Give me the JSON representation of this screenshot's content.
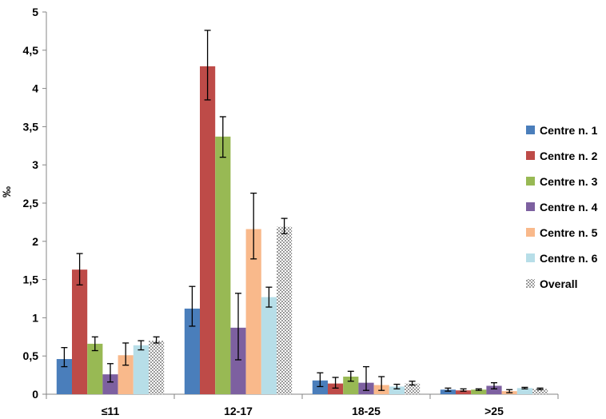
{
  "chart_data": {
    "type": "bar",
    "title": "",
    "xlabel": "",
    "ylabel": "‰",
    "ylim": [
      0,
      5
    ],
    "ytick_labels": [
      "0",
      "0,5",
      "1",
      "1,5",
      "2",
      "2,5",
      "3",
      "3,5",
      "4",
      "4,5",
      "5"
    ],
    "grid": false,
    "legend_position": "right",
    "categories": [
      "≤11",
      "12-17",
      "18-25",
      ">25"
    ],
    "series": [
      {
        "name": "Centre n. 1",
        "color": "#4a7ebb",
        "values": [
          0.46,
          1.12,
          0.18,
          0.06
        ],
        "err_low": [
          0.36,
          0.89,
          0.1,
          0.04
        ],
        "err_high": [
          0.61,
          1.41,
          0.28,
          0.08
        ]
      },
      {
        "name": "Centre n. 2",
        "color": "#be4b48",
        "values": [
          1.63,
          4.29,
          0.14,
          0.05
        ],
        "err_low": [
          1.43,
          3.85,
          0.08,
          0.04
        ],
        "err_high": [
          1.84,
          4.76,
          0.22,
          0.07
        ]
      },
      {
        "name": "Centre n. 3",
        "color": "#98b954",
        "values": [
          0.66,
          3.37,
          0.23,
          0.06
        ],
        "err_low": [
          0.57,
          3.1,
          0.17,
          0.05
        ],
        "err_high": [
          0.75,
          3.63,
          0.3,
          0.07
        ]
      },
      {
        "name": "Centre n. 4",
        "color": "#7d60a0",
        "values": [
          0.26,
          0.87,
          0.15,
          0.11
        ],
        "err_low": [
          0.16,
          0.45,
          0.05,
          0.07
        ],
        "err_high": [
          0.4,
          1.32,
          0.36,
          0.15
        ]
      },
      {
        "name": "Centre n. 5",
        "color": "#f9b98b",
        "values": [
          0.51,
          2.16,
          0.12,
          0.04
        ],
        "err_low": [
          0.38,
          1.77,
          0.05,
          0.02
        ],
        "err_high": [
          0.67,
          2.63,
          0.23,
          0.06
        ]
      },
      {
        "name": "Centre n. 6",
        "color": "#b7dee8",
        "values": [
          0.64,
          1.27,
          0.1,
          0.08
        ],
        "err_low": [
          0.58,
          1.14,
          0.07,
          0.07
        ],
        "err_high": [
          0.7,
          1.4,
          0.13,
          0.09
        ]
      },
      {
        "name": "Overall",
        "color": "#bfbfbf",
        "pattern": "checker",
        "values": [
          0.7,
          2.19,
          0.14,
          0.07
        ],
        "err_low": [
          0.67,
          2.1,
          0.12,
          0.06
        ],
        "err_high": [
          0.75,
          2.3,
          0.17,
          0.08
        ]
      }
    ]
  }
}
